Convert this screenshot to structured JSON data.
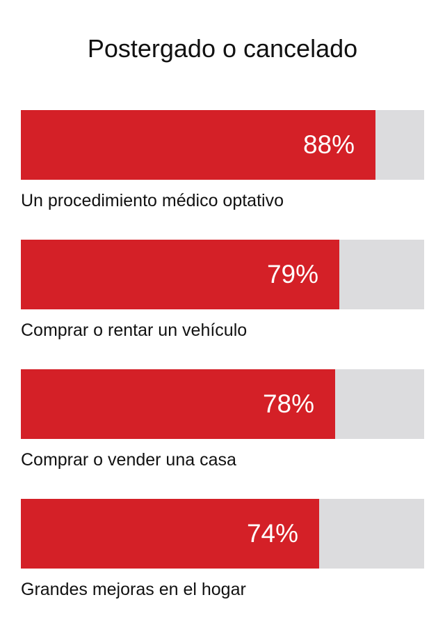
{
  "chart_data": {
    "type": "bar",
    "title": "Postergado o cancelado",
    "xlabel": "",
    "ylabel": "",
    "ylim": [
      0,
      100
    ],
    "categories": [
      "Un procedimiento médico optativo",
      "Comprar o rentar un vehículo",
      "Comprar o vender una casa",
      "Grandes mejoras en el hogar"
    ],
    "values": [
      88,
      79,
      78,
      74
    ],
    "value_labels": [
      "88%",
      "79%",
      "78%",
      "74%"
    ],
    "colors": {
      "bar": "#d42027",
      "track": "#dcdcde"
    }
  }
}
